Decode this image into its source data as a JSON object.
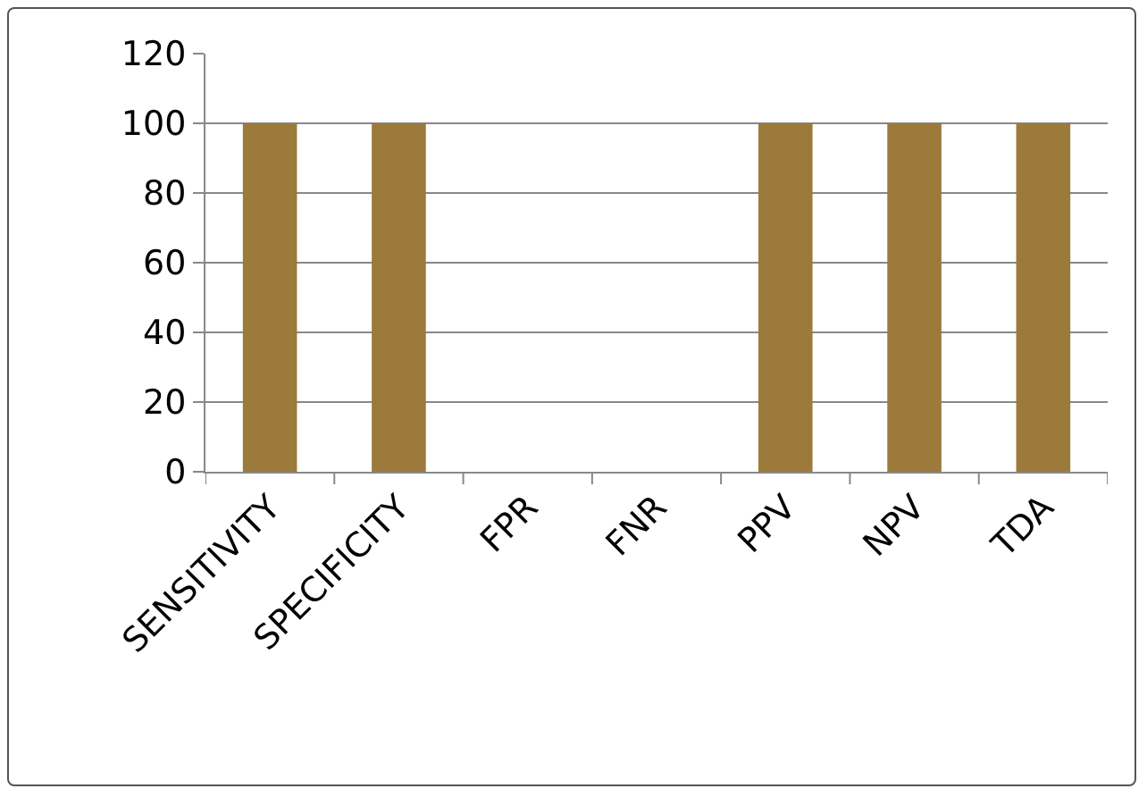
{
  "chart_data": {
    "type": "bar",
    "categories": [
      "SENSITIVITY",
      "SPECIFICITY",
      "FPR",
      "FNR",
      "PPV",
      "NPV",
      "TDA"
    ],
    "values": [
      100,
      100,
      0,
      0,
      100,
      100,
      100
    ],
    "color": "#9c7a3b",
    "ylim": [
      0,
      120
    ],
    "yticks": [
      0,
      20,
      40,
      60,
      80,
      100,
      120
    ],
    "grid": "y",
    "legend": false
  }
}
